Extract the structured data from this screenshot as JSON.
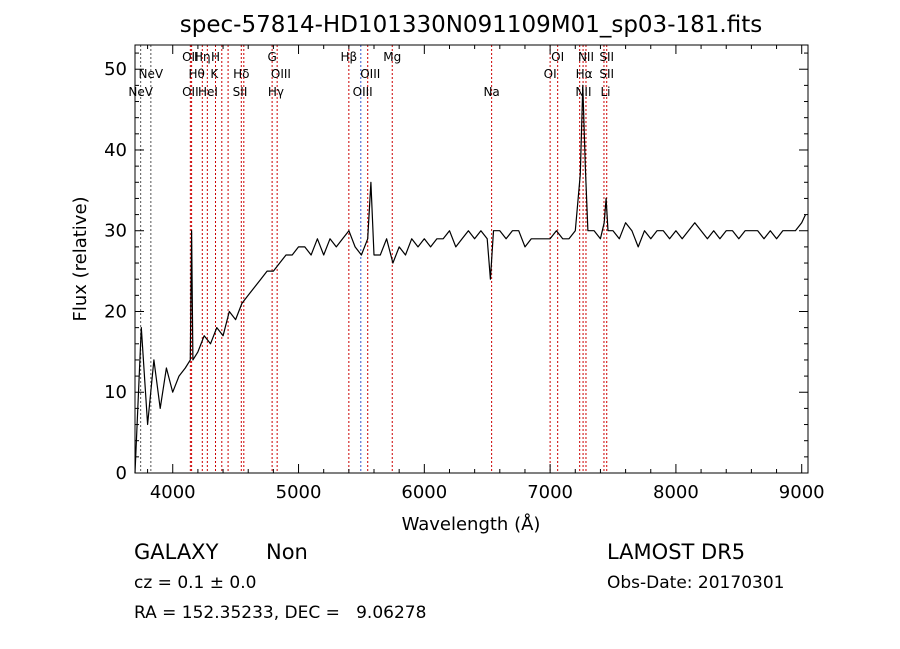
{
  "chart_data": {
    "type": "line",
    "title": "spec-57814-HD101330N091109M01_sp03-181.fits",
    "xlabel": "Wavelength (Å)",
    "ylabel": "Flux (relative)",
    "xlim": [
      3700,
      9050
    ],
    "ylim": [
      0,
      53
    ],
    "xticks": [
      4000,
      5000,
      6000,
      7000,
      8000,
      9000
    ],
    "yticks": [
      0,
      10,
      20,
      30,
      40,
      50
    ],
    "series": [
      {
        "x": [
          3700,
          3750,
          3800,
          3850,
          3900,
          3950,
          4000,
          4050,
          4100,
          4140,
          4150,
          4160,
          4200,
          4250,
          4300,
          4350,
          4400,
          4450,
          4500,
          4550,
          4600,
          4650,
          4700,
          4750,
          4800,
          4850,
          4900,
          4950,
          5000,
          5050,
          5100,
          5150,
          5200,
          5250,
          5300,
          5350,
          5400,
          5450,
          5500,
          5550,
          5575,
          5600,
          5650,
          5700,
          5750,
          5800,
          5850,
          5900,
          5950,
          6000,
          6050,
          6100,
          6150,
          6200,
          6250,
          6300,
          6350,
          6400,
          6450,
          6500,
          6525,
          6550,
          6600,
          6650,
          6700,
          6750,
          6800,
          6850,
          6900,
          6950,
          7000,
          7050,
          7100,
          7150,
          7200,
          7240,
          7260,
          7280,
          7300,
          7350,
          7400,
          7430,
          7445,
          7460,
          7500,
          7550,
          7600,
          7650,
          7700,
          7750,
          7800,
          7850,
          7900,
          7950,
          8000,
          8050,
          8100,
          8150,
          8200,
          8250,
          8300,
          8350,
          8400,
          8450,
          8500,
          8550,
          8600,
          8650,
          8700,
          8750,
          8800,
          8850,
          8900,
          8950,
          9000,
          9030
        ],
        "y": [
          0,
          18,
          6,
          14,
          8,
          13,
          10,
          12,
          13,
          14,
          30,
          14,
          15,
          17,
          16,
          18,
          17,
          20,
          19,
          21,
          22,
          23,
          24,
          25,
          25,
          26,
          27,
          27,
          28,
          28,
          27,
          29,
          27,
          29,
          28,
          29,
          30,
          28,
          27,
          29,
          36,
          27,
          27,
          29,
          26,
          28,
          27,
          29,
          28,
          29,
          28,
          29,
          29,
          30,
          28,
          29,
          30,
          29,
          30,
          29,
          24,
          30,
          30,
          29,
          30,
          30,
          28,
          29,
          29,
          29,
          29,
          30,
          29,
          29,
          30,
          37,
          48,
          38,
          30,
          30,
          29,
          31,
          34,
          30,
          30,
          29,
          31,
          30,
          28,
          30,
          29,
          30,
          30,
          29,
          30,
          29,
          30,
          31,
          30,
          29,
          30,
          29,
          30,
          30,
          29,
          30,
          30,
          30,
          29,
          30,
          29,
          30,
          30,
          30,
          31,
          32
        ]
      }
    ],
    "lines": [
      {
        "x": 3745,
        "color": "#555555"
      },
      {
        "x": 3826,
        "color": "#555555"
      },
      {
        "x": 4140,
        "color": "#cc0000"
      },
      {
        "x": 4150,
        "color": "#cc0000"
      },
      {
        "x": 4235,
        "color": "#cc0000"
      },
      {
        "x": 4275,
        "color": "#cc0000"
      },
      {
        "x": 4340,
        "color": "#cc0000"
      },
      {
        "x": 4390,
        "color": "#cc0000"
      },
      {
        "x": 4440,
        "color": "#cc0000"
      },
      {
        "x": 4545,
        "color": "#cc0000"
      },
      {
        "x": 4565,
        "color": "#cc0000"
      },
      {
        "x": 4790,
        "color": "#cc0000"
      },
      {
        "x": 4830,
        "color": "#cc0000"
      },
      {
        "x": 5400,
        "color": "#cc0000"
      },
      {
        "x": 5495,
        "color": "#3355cc"
      },
      {
        "x": 5550,
        "color": "#cc0000"
      },
      {
        "x": 5745,
        "color": "#cc0000"
      },
      {
        "x": 6535,
        "color": "#cc0000"
      },
      {
        "x": 7000,
        "color": "#cc0000"
      },
      {
        "x": 7060,
        "color": "#cc0000"
      },
      {
        "x": 7235,
        "color": "#cc0000"
      },
      {
        "x": 7262,
        "color": "#cc0000"
      },
      {
        "x": 7285,
        "color": "#cc0000"
      },
      {
        "x": 7428,
        "color": "#cc0000"
      },
      {
        "x": 7450,
        "color": "#cc0000"
      }
    ],
    "line_labels": [
      {
        "text": "NeV",
        "x": 3826,
        "row": 1
      },
      {
        "text": "NeV",
        "x": 3745,
        "row": 2
      },
      {
        "text": "OII",
        "x": 4140,
        "row": 0
      },
      {
        "text": "Hη",
        "x": 4235,
        "row": 0
      },
      {
        "text": "H",
        "x": 4340,
        "row": 0
      },
      {
        "text": "Hθ",
        "x": 4190,
        "row": 1
      },
      {
        "text": "K",
        "x": 4330,
        "row": 1
      },
      {
        "text": "Hδ",
        "x": 4545,
        "row": 1
      },
      {
        "text": "OII",
        "x": 4140,
        "row": 2
      },
      {
        "text": "HeI",
        "x": 4280,
        "row": 2
      },
      {
        "text": "SII",
        "x": 4535,
        "row": 2
      },
      {
        "text": "G",
        "x": 4790,
        "row": 0
      },
      {
        "text": "OIII",
        "x": 4860,
        "row": 1
      },
      {
        "text": "Hγ",
        "x": 4820,
        "row": 2
      },
      {
        "text": "Hβ",
        "x": 5400,
        "row": 0
      },
      {
        "text": "OIII",
        "x": 5570,
        "row": 1
      },
      {
        "text": "OIII",
        "x": 5510,
        "row": 2
      },
      {
        "text": "Mg",
        "x": 5745,
        "row": 0
      },
      {
        "text": "Na",
        "x": 6535,
        "row": 2
      },
      {
        "text": "OI",
        "x": 7060,
        "row": 0
      },
      {
        "text": "OI",
        "x": 7000,
        "row": 1
      },
      {
        "text": "NII",
        "x": 7285,
        "row": 0
      },
      {
        "text": "Hα",
        "x": 7270,
        "row": 1
      },
      {
        "text": "NII",
        "x": 7265,
        "row": 2
      },
      {
        "text": "SII",
        "x": 7450,
        "row": 0
      },
      {
        "text": "SII",
        "x": 7450,
        "row": 1
      },
      {
        "text": "Li",
        "x": 7440,
        "row": 2
      }
    ]
  },
  "info": {
    "object_class": "GALAXY",
    "subclass": "Non",
    "survey": "LAMOST DR5",
    "cz": "cz = 0.1 ± 0.0",
    "obs_date": "Obs-Date: 20170301",
    "coords": "RA = 152.35233, DEC =   9.06278"
  }
}
